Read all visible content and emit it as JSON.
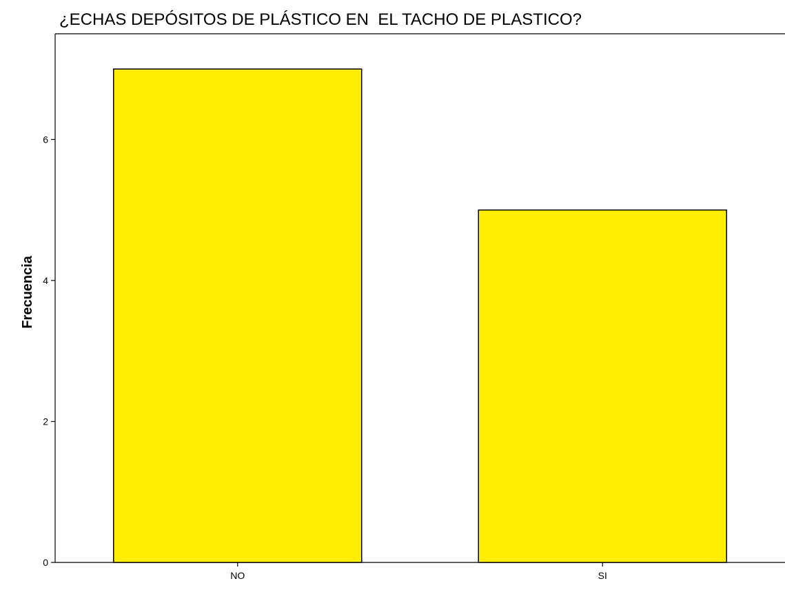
{
  "chart_data": {
    "type": "bar",
    "title": "¿ECHAS DEPÓSITOS DE PLÁSTICO EN  EL TACHO DE PLASTICO?",
    "xlabel": "",
    "ylabel": "Frecuencia",
    "categories": [
      "NO",
      "SI"
    ],
    "values": [
      7,
      5
    ],
    "ylim": [
      0,
      7.5
    ],
    "yticks": [
      0,
      2,
      4,
      6
    ],
    "ytick_labels": [
      "0",
      "2",
      "4",
      "6"
    ],
    "grid": false,
    "legend": "none",
    "colors": {
      "bar_fill": "#ffee00",
      "bar_stroke": "#000000",
      "axis": "#000000",
      "background": "#ffffff"
    }
  }
}
